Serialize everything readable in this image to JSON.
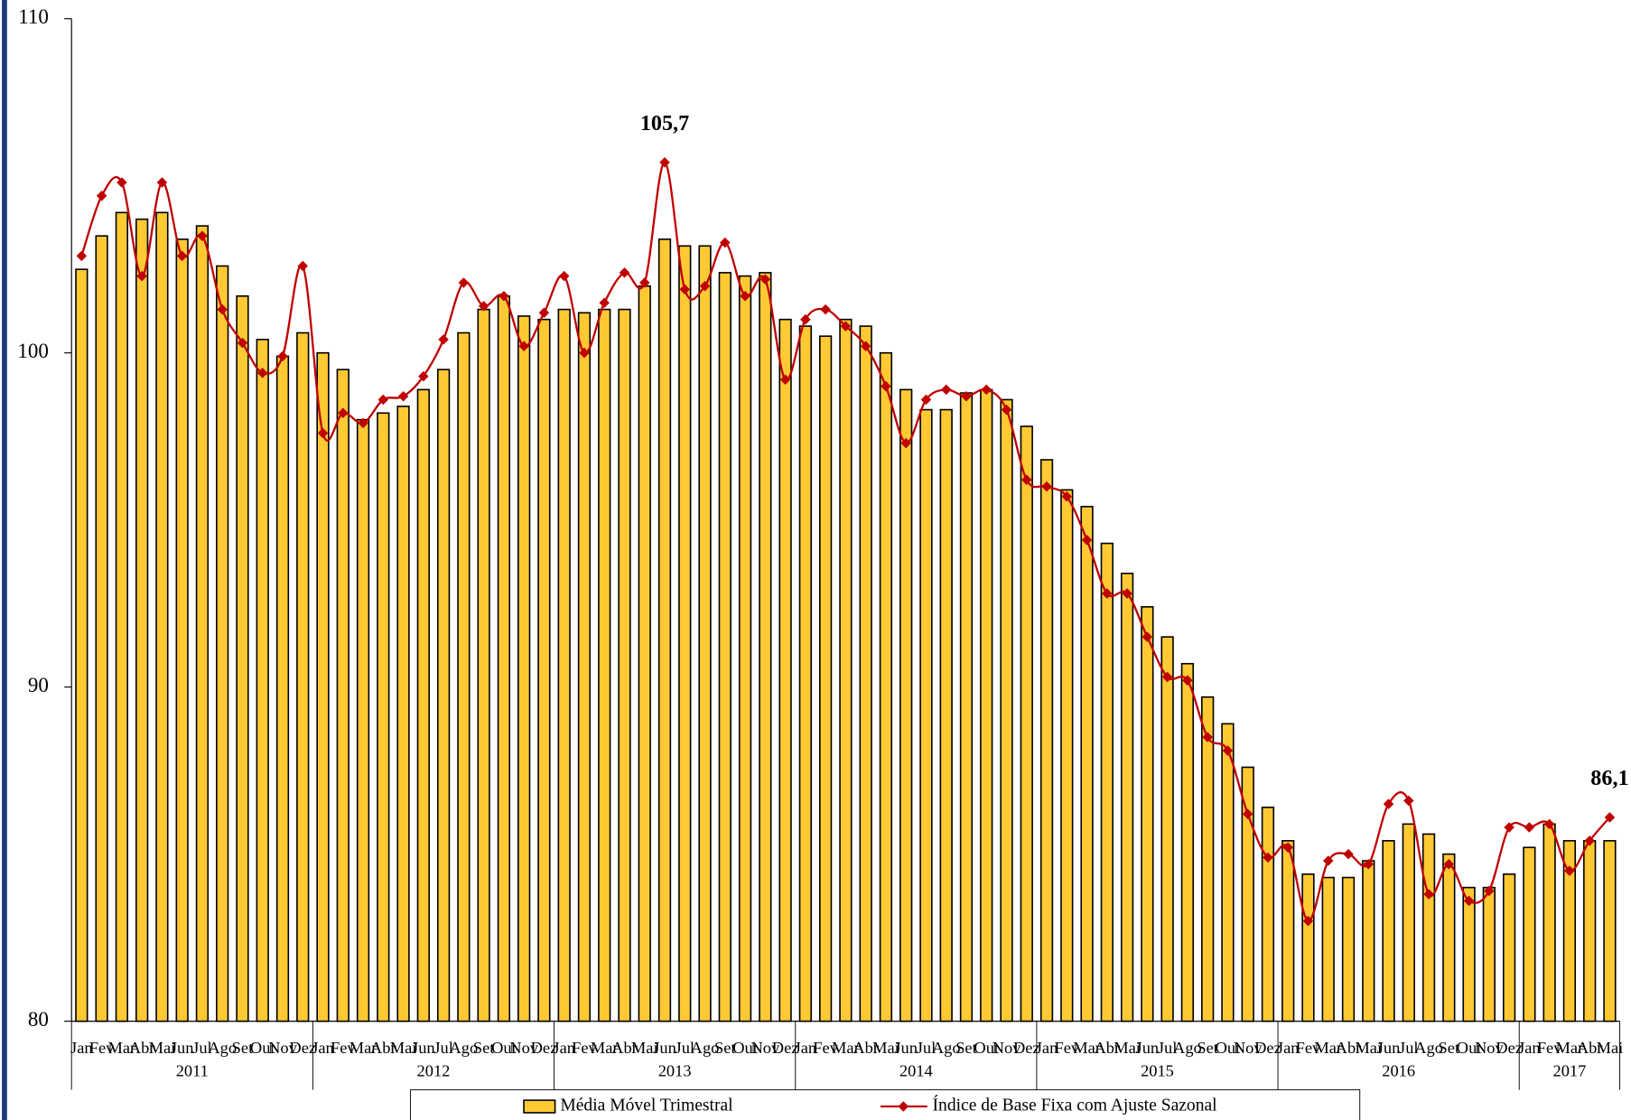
{
  "chart_data": {
    "type": "bar-line",
    "categories": [
      "Jan",
      "Fev",
      "Mar",
      "Abr",
      "Mai",
      "Jun",
      "Jul",
      "Ago",
      "Set",
      "Out",
      "Nov",
      "Dez",
      "Jan",
      "Fev",
      "Mar",
      "Abr",
      "Mai",
      "Jun",
      "Jul",
      "Ago",
      "Set",
      "Out",
      "Nov",
      "Dez",
      "Jan",
      "Fev",
      "Mar",
      "Abr",
      "Mai",
      "Jun",
      "Jul",
      "Ago",
      "Set",
      "Out",
      "Nov",
      "Dez",
      "Jan",
      "Fev",
      "Mar",
      "Abr",
      "Mai",
      "Jun",
      "Jul",
      "Ago",
      "Set",
      "Out",
      "Nov",
      "Dez",
      "Jan",
      "Fev",
      "Mar",
      "Abr",
      "Mai",
      "Jun",
      "Jul",
      "Ago",
      "Set",
      "Out",
      "Nov",
      "Dez",
      "Jan",
      "Fev",
      "Mar",
      "Abr",
      "Mai",
      "Jun",
      "Jul",
      "Ago",
      "Set",
      "Out",
      "Nov",
      "Dez",
      "Jan",
      "Fev",
      "Mar",
      "Abr",
      "Mai"
    ],
    "years": [
      "2011",
      "2012",
      "2013",
      "2014",
      "2015",
      "2016",
      "2017"
    ],
    "series": [
      {
        "name": "Média Móvel Trimestral",
        "kind": "bar",
        "color": "#FFC933",
        "values": [
          102.5,
          103.5,
          104.2,
          104.0,
          104.2,
          103.4,
          103.8,
          102.6,
          101.7,
          100.4,
          99.9,
          100.6,
          100.0,
          99.5,
          98.0,
          98.2,
          98.4,
          98.9,
          99.5,
          100.6,
          101.3,
          101.7,
          101.1,
          101.0,
          101.3,
          101.2,
          101.3,
          101.3,
          102.0,
          103.4,
          103.2,
          103.2,
          102.4,
          102.3,
          102.4,
          101.0,
          100.8,
          100.5,
          101.0,
          100.8,
          100.0,
          98.9,
          98.3,
          98.3,
          98.8,
          98.9,
          98.6,
          97.8,
          96.8,
          95.9,
          95.4,
          94.3,
          93.4,
          92.4,
          91.5,
          90.7,
          89.7,
          88.9,
          87.6,
          86.4,
          85.4,
          84.4,
          84.3,
          84.3,
          84.8,
          85.4,
          85.9,
          85.6,
          85.0,
          84.0,
          84.0,
          84.4,
          85.2,
          85.9,
          85.4,
          85.4,
          85.4
        ]
      },
      {
        "name": "Índice de Base Fixa com Ajuste Sazonal",
        "kind": "line",
        "color": "#C00000",
        "values": [
          102.9,
          104.7,
          105.1,
          102.3,
          105.1,
          102.9,
          103.5,
          101.3,
          100.3,
          99.4,
          99.9,
          102.6,
          97.6,
          98.2,
          97.9,
          98.6,
          98.7,
          99.3,
          100.4,
          102.1,
          101.4,
          101.7,
          100.2,
          101.2,
          102.3,
          100.0,
          101.5,
          102.4,
          102.1,
          105.7,
          101.9,
          102.0,
          103.3,
          101.7,
          102.2,
          99.2,
          101.0,
          101.3,
          100.8,
          100.2,
          99.0,
          97.3,
          98.6,
          98.9,
          98.7,
          98.9,
          98.3,
          96.2,
          96.0,
          95.7,
          94.4,
          92.8,
          92.8,
          91.5,
          90.3,
          90.2,
          88.5,
          88.1,
          86.2,
          84.9,
          85.2,
          83.0,
          84.8,
          85.0,
          84.7,
          86.5,
          86.6,
          83.8,
          84.7,
          83.6,
          83.9,
          85.8,
          85.8,
          85.9,
          84.5,
          85.4,
          86.1
        ],
        "value_labels": [
          null,
          null,
          null,
          null,
          null,
          null,
          null,
          null,
          null,
          null,
          null,
          null,
          null,
          null,
          null,
          null,
          null,
          null,
          null,
          null,
          null,
          null,
          null,
          null,
          null,
          null,
          null,
          null,
          null,
          "105,7",
          null,
          null,
          null,
          null,
          null,
          null,
          null,
          null,
          null,
          null,
          null,
          null,
          null,
          null,
          null,
          null,
          null,
          null,
          null,
          null,
          null,
          null,
          null,
          null,
          null,
          null,
          null,
          null,
          null,
          null,
          null,
          null,
          null,
          null,
          null,
          null,
          null,
          null,
          null,
          null,
          null,
          null,
          null,
          null,
          null,
          null,
          "86,1"
        ]
      }
    ],
    "ylim": [
      80,
      110
    ],
    "yticks": [
      80,
      90,
      100,
      110
    ],
    "grid": false
  }
}
